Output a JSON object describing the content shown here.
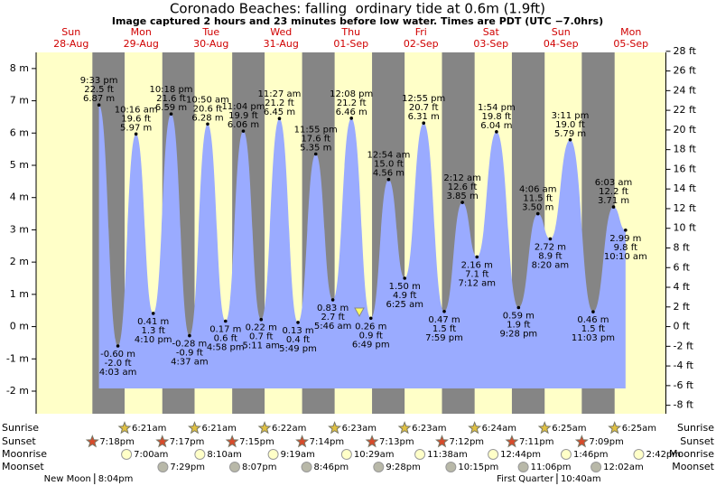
{
  "chart_data": {
    "type": "tide",
    "title": "Coronado Beaches: falling  ordinary tide at 0.6m (1.9ft)",
    "subtitle": "Image captured 2 hours and 23 minutes before low water. Times are PDT (UTC −7.0hrs)",
    "ylim": [
      -2.7,
      8.5
    ],
    "yticks": [
      {
        "value": -2,
        "label": "-2 m"
      },
      {
        "value": -1,
        "label": "-1 m"
      },
      {
        "value": 0,
        "label": "0 m"
      },
      {
        "value": 1,
        "label": "1 m"
      },
      {
        "value": 2,
        "label": "2 m"
      },
      {
        "value": 3,
        "label": "3 m"
      },
      {
        "value": 4,
        "label": "4 m"
      },
      {
        "value": 5,
        "label": "5 m"
      },
      {
        "value": 6,
        "label": "6 m"
      },
      {
        "value": 7,
        "label": "7 m"
      },
      {
        "value": 8,
        "label": "8 m"
      }
    ],
    "y2lim": [
      -8.86,
      27.89
    ],
    "y2ticks": [
      {
        "value": -8,
        "label": "-8 ft"
      },
      {
        "value": -6,
        "label": "-6 ft"
      },
      {
        "value": -4,
        "label": "-4 ft"
      },
      {
        "value": -2,
        "label": "-2 ft"
      },
      {
        "value": 0,
        "label": "0 ft"
      },
      {
        "value": 2,
        "label": "2 ft"
      },
      {
        "value": 4,
        "label": "4 ft"
      },
      {
        "value": 6,
        "label": "6 ft"
      },
      {
        "value": 8,
        "label": "8 ft"
      },
      {
        "value": 10,
        "label": "10 ft"
      },
      {
        "value": 12,
        "label": "12 ft"
      },
      {
        "value": 14,
        "label": "14 ft"
      },
      {
        "value": 16,
        "label": "16 ft"
      },
      {
        "value": 18,
        "label": "18 ft"
      },
      {
        "value": 20,
        "label": "20 ft"
      },
      {
        "value": 22,
        "label": "22 ft"
      },
      {
        "value": 24,
        "label": "24 ft"
      },
      {
        "value": 26,
        "label": "26 ft"
      },
      {
        "value": 28,
        "label": "28 ft"
      }
    ],
    "color": "#9aabff",
    "row_labels": [
      "Sunrise",
      "Sunset",
      "Moonrise",
      "Moonset"
    ],
    "days": [
      {
        "name": "Sun",
        "date": "28-Aug",
        "sunset": "7:18pm",
        "moon_phase": {
          "name": "New Moon",
          "time": "8:04pm"
        },
        "tides": [
          {
            "time": "9:33 pm",
            "value": 6.87,
            "value_labels": [
              "22.5 ft",
              "6.87 m"
            ]
          }
        ]
      },
      {
        "name": "Mon",
        "date": "29-Aug",
        "sunrise": "6:21am",
        "sunset": "7:17pm",
        "moonrise": "7:00am",
        "moonset": "7:29pm",
        "tides": [
          {
            "time": "4:03 am",
            "value": -0.6,
            "value_labels": [
              "-0.60 m",
              "-2.0 ft"
            ]
          },
          {
            "time": "10:16 am",
            "value": 5.97,
            "value_labels": [
              "19.6 ft",
              "5.97 m"
            ]
          },
          {
            "time": "4:10 pm",
            "value": 0.41,
            "value_labels": [
              "0.41 m",
              "1.3 ft"
            ]
          },
          {
            "time": "10:18 pm",
            "value": 6.59,
            "value_labels": [
              "21.6 ft",
              "6.59 m"
            ]
          }
        ]
      },
      {
        "name": "Tue",
        "date": "30-Aug",
        "sunrise": "6:21am",
        "sunset": "7:15pm",
        "moonrise": "8:10am",
        "moonset": "8:07pm",
        "tides": [
          {
            "time": "4:37 am",
            "value": -0.28,
            "value_labels": [
              "-0.28 m",
              "-0.9 ft"
            ]
          },
          {
            "time": "10:50 am",
            "value": 6.28,
            "value_labels": [
              "20.6 ft",
              "6.28 m"
            ]
          },
          {
            "time": "4:58 pm",
            "value": 0.17,
            "value_labels": [
              "0.17 m",
              "0.6 ft"
            ]
          },
          {
            "time": "11:04 pm",
            "value": 6.06,
            "value_labels": [
              "19.9 ft",
              "6.06 m"
            ]
          }
        ]
      },
      {
        "name": "Wed",
        "date": "31-Aug",
        "sunrise": "6:22am",
        "sunset": "7:14pm",
        "moonrise": "9:19am",
        "moonset": "8:46pm",
        "tides": [
          {
            "time": "5:11 am",
            "value": 0.22,
            "value_labels": [
              "0.22 m",
              "0.7 ft"
            ]
          },
          {
            "time": "11:27 am",
            "value": 6.45,
            "value_labels": [
              "21.2 ft",
              "6.45 m"
            ]
          },
          {
            "time": "5:49 pm",
            "value": 0.13,
            "value_labels": [
              "0.13 m",
              "0.4 ft"
            ]
          },
          {
            "time": "11:55 pm",
            "value": 5.35,
            "value_labels": [
              "17.6 ft",
              "5.35 m"
            ]
          }
        ]
      },
      {
        "name": "Thu",
        "date": "01-Sep",
        "sunrise": "6:23am",
        "sunset": "7:13pm",
        "moonrise": "10:29am",
        "moonset": "9:28pm",
        "tides": [
          {
            "time": "5:46 am",
            "value": 0.83,
            "value_labels": [
              "0.83 m",
              "2.7 ft"
            ]
          },
          {
            "time": "12:08 pm",
            "value": 6.46,
            "value_labels": [
              "21.2 ft",
              "6.46 m"
            ]
          },
          {
            "time": "6:49 pm",
            "value": 0.26,
            "value_labels": [
              "0.26 m",
              "0.9 ft"
            ]
          }
        ]
      },
      {
        "name": "Fri",
        "date": "02-Sep",
        "sunrise": "6:23am",
        "sunset": "7:12pm",
        "moonrise": "11:38am",
        "moonset": "10:15pm",
        "tides": [
          {
            "time": "12:54 am",
            "value": 4.56,
            "value_labels": [
              "15.0 ft",
              "4.56 m"
            ]
          },
          {
            "time": "6:25 am",
            "value": 1.5,
            "value_labels": [
              "1.50 m",
              "4.9 ft"
            ]
          },
          {
            "time": "12:55 pm",
            "value": 6.31,
            "value_labels": [
              "20.7 ft",
              "6.31 m"
            ]
          },
          {
            "time": "7:59 pm",
            "value": 0.47,
            "value_labels": [
              "0.47 m",
              "1.5 ft"
            ]
          }
        ]
      },
      {
        "name": "Sat",
        "date": "03-Sep",
        "sunrise": "6:24am",
        "sunset": "7:11pm",
        "moonrise": "12:44pm",
        "moonset": "11:06pm",
        "tides": [
          {
            "time": "2:12 am",
            "value": 3.85,
            "value_labels": [
              "12.6 ft",
              "3.85 m"
            ]
          },
          {
            "time": "7:12 am",
            "value": 2.16,
            "value_labels": [
              "2.16 m",
              "7.1 ft"
            ]
          },
          {
            "time": "1:54 pm",
            "value": 6.04,
            "value_labels": [
              "19.8 ft",
              "6.04 m"
            ]
          },
          {
            "time": "9:28 pm",
            "value": 0.59,
            "value_labels": [
              "0.59 m",
              "1.9 ft"
            ]
          }
        ]
      },
      {
        "name": "Sun",
        "date": "04-Sep",
        "sunrise": "6:25am",
        "sunset": "7:09pm",
        "moonrise": "1:46pm",
        "moon_phase": {
          "name": "First Quarter",
          "time": "10:40am"
        },
        "tides": [
          {
            "time": "4:06 am",
            "value": 3.5,
            "value_labels": [
              "11.5 ft",
              "3.50 m"
            ]
          },
          {
            "time": "8:20 am",
            "value": 2.72,
            "value_labels": [
              "2.72 m",
              "8.9 ft"
            ]
          },
          {
            "time": "3:11 pm",
            "value": 5.79,
            "value_labels": [
              "19.0 ft",
              "5.79 m"
            ]
          },
          {
            "time": "11:03 pm",
            "value": 0.46,
            "value_labels": [
              "0.46 m",
              "1.5 ft"
            ]
          }
        ]
      },
      {
        "name": "Mon",
        "date": "05-Sep",
        "sunrise": "6:25am",
        "moonrise": "2:42pm",
        "moonset": "12:02am",
        "tides": [
          {
            "time": "6:03 am",
            "value": 3.71,
            "value_labels": [
              "12.2 ft",
              "3.71 m"
            ]
          },
          {
            "time": "10:10 am",
            "value": 2.99,
            "value_labels": [
              "2.99 m",
              "9.8 ft"
            ]
          }
        ]
      }
    ]
  }
}
